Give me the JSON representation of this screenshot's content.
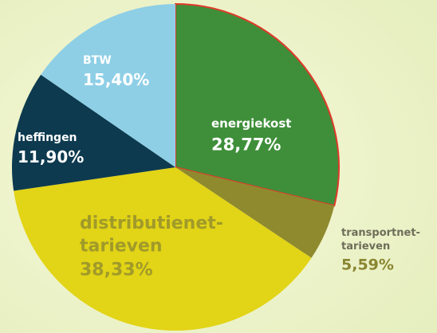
{
  "chart_data": {
    "type": "pie",
    "categories": [
      "energiekost",
      "transportnet-tarieven",
      "distributienet-tarieven",
      "heffingen",
      "BTW"
    ],
    "values": [
      28.77,
      5.59,
      38.33,
      11.9,
      15.4
    ],
    "value_labels": [
      "28,77%",
      "5,59%",
      "38,33%",
      "11,90%",
      "15,40%"
    ],
    "colors": [
      "#3f8f3a",
      "#8f8a2e",
      "#e2d416",
      "#0d3a4f",
      "#8ecfe6"
    ]
  }
}
